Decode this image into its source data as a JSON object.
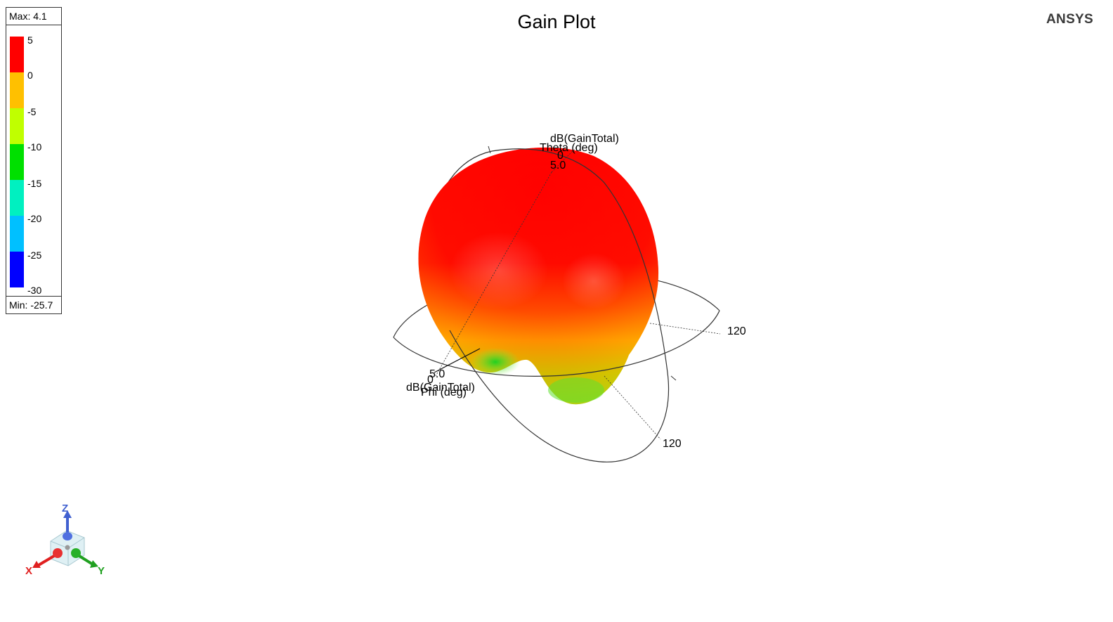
{
  "title": "Gain Plot",
  "brand": "ANSYS",
  "legend": {
    "max_label": "Max: 4.1",
    "min_label": "Min: -25.7",
    "ticks": [
      "5",
      "0",
      "-5",
      "-10",
      "-15",
      "-20",
      "-25",
      "-30"
    ],
    "colors": [
      "#ff0000",
      "#ffc000",
      "#c0ff00",
      "#00e000",
      "#00f0c0",
      "#00c0ff",
      "#0000ff"
    ]
  },
  "chart_data": {
    "type": "3d-polar-radiation-pattern",
    "quantity": "dB(GainTotal)",
    "max": 4.1,
    "min": -25.7,
    "color_scale_range": [
      -30,
      5
    ],
    "color_scale_ticks": [
      5,
      0,
      -5,
      -10,
      -15,
      -20,
      -25,
      -30
    ],
    "theta_axis": {
      "label": "Theta (deg)",
      "tick_0": "0",
      "tick_120": "120",
      "radius_label": "5.0",
      "quantity_label": "dB(GainTotal)"
    },
    "phi_axis": {
      "label": "Phi (deg)",
      "tick_0": "0",
      "tick_120": "120",
      "radius_label": "5.0",
      "quantity_label": "dB(GainTotal)"
    }
  },
  "triad": {
    "x": "X",
    "y": "Y",
    "z": "Z",
    "x_color": "#e02020",
    "y_color": "#20a020",
    "z_color": "#4060d0"
  }
}
